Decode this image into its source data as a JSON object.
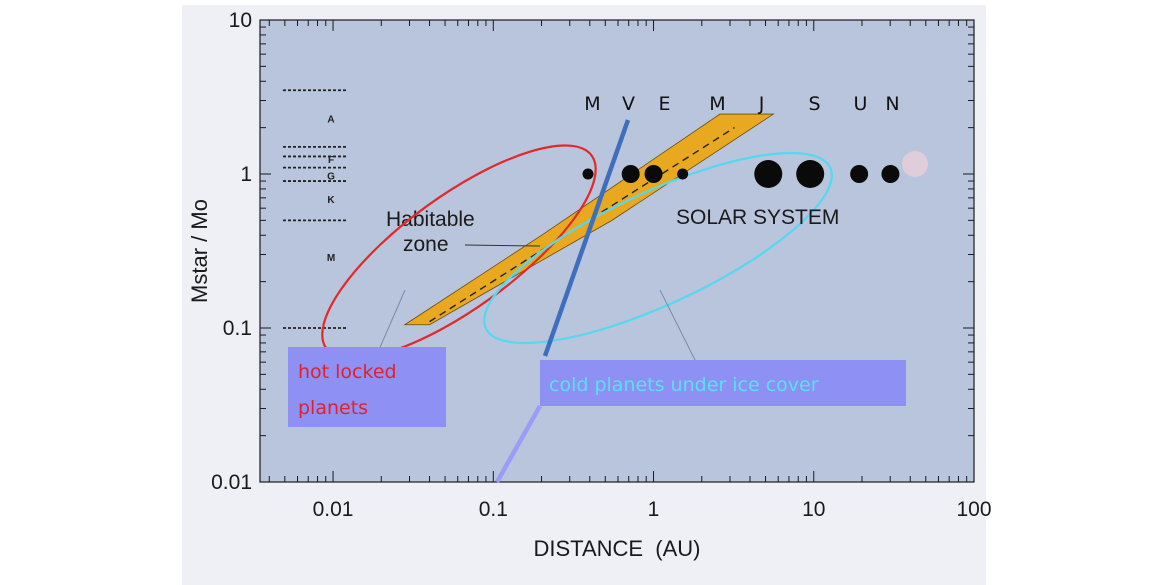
{
  "chart_data": {
    "type": "scatter",
    "xlabel": "DISTANCE  (AU)",
    "ylabel": "Mstar / Mo",
    "xscale": "log",
    "yscale": "log",
    "xlim": [
      0.0035,
      100
    ],
    "ylim": [
      0.01,
      10
    ],
    "x_ticks": [
      {
        "value": 0.01,
        "label": "0.01"
      },
      {
        "value": 0.1,
        "label": "0.1"
      },
      {
        "value": 1,
        "label": "1"
      },
      {
        "value": 10,
        "label": "10"
      },
      {
        "value": 100,
        "label": "100"
      }
    ],
    "y_ticks": [
      {
        "value": 0.01,
        "label": "0.01"
      },
      {
        "value": 0.1,
        "label": "0.1"
      },
      {
        "value": 1,
        "label": "1"
      },
      {
        "value": 10,
        "label": "10"
      }
    ],
    "stellar_classes": [
      {
        "label": "A",
        "mass": 2.3
      },
      {
        "label": "F",
        "mass": 1.25
      },
      {
        "label": "G",
        "mass": 0.98
      },
      {
        "label": "K",
        "mass": 0.69
      },
      {
        "label": "M",
        "mass": 0.29
      }
    ],
    "class_boundaries": [
      3.5,
      1.5,
      1.3,
      1.1,
      0.9,
      0.5,
      0.1
    ],
    "planets": [
      {
        "label": "M",
        "x": 0.39,
        "y": 1,
        "size": "small"
      },
      {
        "label": "V",
        "x": 0.72,
        "y": 1,
        "size": "medium"
      },
      {
        "label": "E",
        "x": 1.0,
        "y": 1,
        "size": "medium"
      },
      {
        "label": "M",
        "x": 1.52,
        "y": 1,
        "size": "small"
      },
      {
        "label": "J",
        "x": 5.2,
        "y": 1,
        "size": "large"
      },
      {
        "label": "S",
        "x": 9.5,
        "y": 1,
        "size": "large"
      },
      {
        "label": "U",
        "x": 19.2,
        "y": 1,
        "size": "medium"
      },
      {
        "label": "N",
        "x": 30.1,
        "y": 1,
        "size": "medium"
      }
    ],
    "habitable_zone": {
      "label_line1": "Habitable",
      "label_line2": "zone",
      "center_line": [
        [
          0.04,
          0.11
        ],
        [
          3.2,
          2.0
        ]
      ],
      "band_polygon": [
        [
          0.028,
          0.105
        ],
        [
          0.04,
          0.105
        ],
        [
          0.55,
          0.5
        ],
        [
          5.6,
          2.45
        ],
        [
          2.6,
          2.45
        ],
        [
          0.2,
          0.4
        ]
      ]
    },
    "annotations": {
      "solar_system": "SOLAR SYSTEM",
      "hot_locked": "hot locked planets",
      "cold_planets": "cold planets under ice cover"
    },
    "colors": {
      "plot_bg": "#b9c4dd",
      "band": "#e8a820",
      "hot_ellipse": "#e02a2a",
      "cold_ellipse": "#55d8f0",
      "divider": "#3f6fbc",
      "hot_box_bg": "#8e90f4",
      "hot_text": "#e3202a",
      "cold_box_bg": "#8e90f4",
      "cold_text": "#5ae0f0"
    }
  }
}
